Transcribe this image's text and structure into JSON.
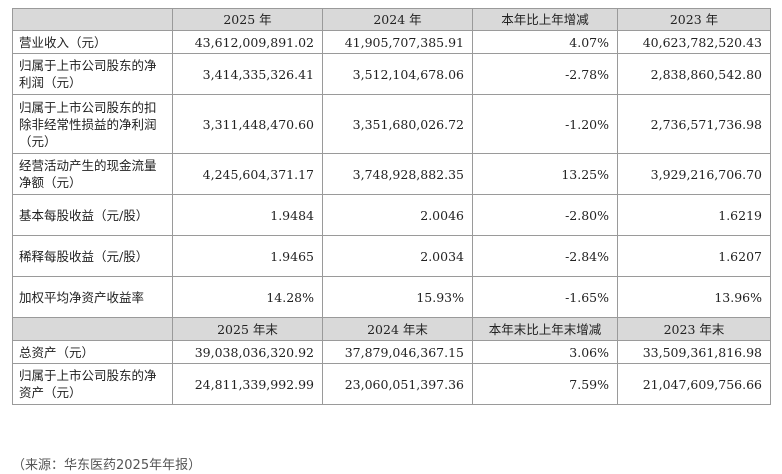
{
  "header1": [
    "",
    "2025 年",
    "2024 年",
    "本年比上年增减",
    "2023 年"
  ],
  "rows1": [
    {
      "label": "营业收入（元）",
      "v": [
        "43,612,009,891.02",
        "41,905,707,385.91",
        "4.07%",
        "40,623,782,520.43"
      ],
      "h": "r1"
    },
    {
      "label": "归属于上市公司股东的净利润（元）",
      "v": [
        "3,414,335,326.41",
        "3,512,104,678.06",
        "-2.78%",
        "2,838,860,542.80"
      ],
      "h": "r2"
    },
    {
      "label": "归属于上市公司股东的扣除非经常性损益的净利润（元）",
      "v": [
        "3,311,448,470.60",
        "3,351,680,026.72",
        "-1.20%",
        "2,736,571,736.98"
      ],
      "h": "r3"
    },
    {
      "label": "经营活动产生的现金流量净额（元）",
      "v": [
        "4,245,604,371.17",
        "3,748,928,882.35",
        "13.25%",
        "3,929,216,706.70"
      ],
      "h": "r2"
    },
    {
      "label": "基本每股收益（元/股）",
      "v": [
        "1.9484",
        "2.0046",
        "-2.80%",
        "1.6219"
      ],
      "h": "r2"
    },
    {
      "label": "稀释每股收益（元/股）",
      "v": [
        "1.9465",
        "2.0034",
        "-2.84%",
        "1.6207"
      ],
      "h": "r2"
    },
    {
      "label": "加权平均净资产收益率",
      "v": [
        "14.28%",
        "15.93%",
        "-1.65%",
        "13.96%"
      ],
      "h": "r2"
    }
  ],
  "header2": [
    "",
    "2025 年末",
    "2024 年末",
    "本年末比上年末增减",
    "2023 年末"
  ],
  "rows2": [
    {
      "label": "总资产（元）",
      "v": [
        "39,038,036,320.92",
        "37,879,046,367.15",
        "3.06%",
        "33,509,361,816.98"
      ],
      "h": "r1"
    },
    {
      "label": "归属于上市公司股东的净资产（元）",
      "v": [
        "24,811,339,992.99",
        "23,060,051,397.36",
        "7.59%",
        "21,047,609,756.66"
      ],
      "h": "r2"
    }
  ],
  "source": "（来源：华东医药2025年年报）"
}
